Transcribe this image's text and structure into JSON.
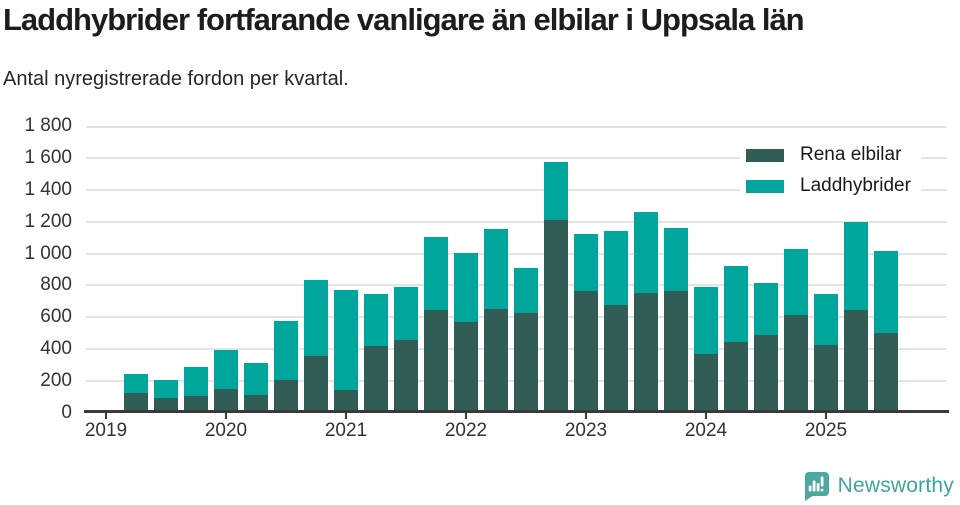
{
  "title": "Laddhybrider fortfarande vanligare än elbilar i Uppsala län",
  "subtitle": "Antal nyregistrerade fordon per kvartal.",
  "chart_data": {
    "type": "bar",
    "stacked": true,
    "title": "Laddhybrider fortfarande vanligare än elbilar i Uppsala län",
    "xlabel": "",
    "ylabel": "Antal nyregistrerade fordon per kvartal",
    "ylim": [
      0,
      1800
    ],
    "grid": true,
    "legend_position": "top-right",
    "categories": [
      "2019 Q2",
      "2019 Q3",
      "2019 Q4",
      "2020 Q1",
      "2020 Q2",
      "2020 Q3",
      "2020 Q4",
      "2021 Q1",
      "2021 Q2",
      "2021 Q3",
      "2021 Q4",
      "2022 Q1",
      "2022 Q2",
      "2022 Q3",
      "2022 Q4",
      "2023 Q1",
      "2023 Q2",
      "2023 Q3",
      "2023 Q4",
      "2024 Q1",
      "2024 Q2",
      "2024 Q3",
      "2024 Q4",
      "2025 Q1",
      "2025 Q2",
      "2025 Q3"
    ],
    "series": [
      {
        "name": "Rena elbilar",
        "color": "#315d56",
        "values": [
          125,
          95,
          105,
          150,
          110,
          210,
          360,
          145,
          420,
          460,
          645,
          570,
          650,
          630,
          1210,
          765,
          680,
          755,
          765,
          370,
          445,
          490,
          615,
          425,
          645,
          500
        ]
      },
      {
        "name": "Laddhybrider",
        "color": "#00a59b",
        "values": [
          120,
          115,
          180,
          245,
          200,
          370,
          475,
          630,
          325,
          330,
          455,
          435,
          500,
          280,
          365,
          360,
          465,
          510,
          395,
          420,
          475,
          325,
          415,
          320,
          555,
          515
        ]
      }
    ],
    "y_ticks": [
      {
        "value": 0,
        "label": "0"
      },
      {
        "value": 200,
        "label": "200"
      },
      {
        "value": 400,
        "label": "400"
      },
      {
        "value": 600,
        "label": "600"
      },
      {
        "value": 800,
        "label": "800"
      },
      {
        "value": 1000,
        "label": "1 000"
      },
      {
        "value": 1200,
        "label": "1 200"
      },
      {
        "value": 1400,
        "label": "1 400"
      },
      {
        "value": 1600,
        "label": "1 600"
      },
      {
        "value": 1800,
        "label": "1 800"
      }
    ],
    "x_tick_labels": [
      "2019",
      "2020",
      "2021",
      "2022",
      "2023",
      "2024",
      "2025"
    ]
  },
  "colors": {
    "series_dark": "#315d56",
    "series_teal": "#00a59b",
    "gridline": "#e4e4e4",
    "axis": "#3a3a3a",
    "tick_text": "#333333",
    "title_text": "#1d1d1d"
  },
  "footer": {
    "brand": "Newsworthy",
    "logo_icon": "bar-chart-speech-bubble-icon",
    "brand_color": "#3fa69b",
    "icon_color": "#4ba89e"
  }
}
